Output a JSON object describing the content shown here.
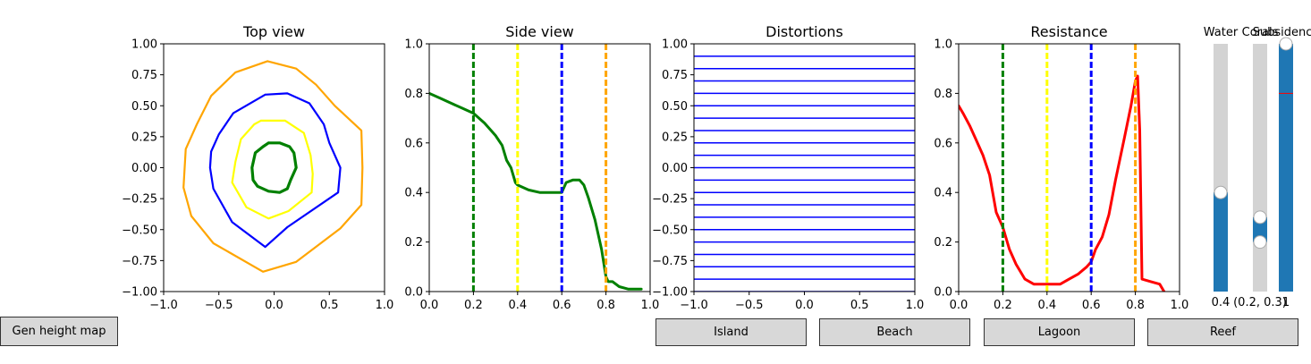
{
  "chart_data": [
    {
      "type": "line",
      "title": "Top view",
      "xlim": [
        -1,
        1
      ],
      "ylim": [
        -1,
        1
      ],
      "xticks": [
        "−1.0",
        "−0.5",
        "0.0",
        "0.5",
        "1.0"
      ],
      "yticks": [
        "−1.00",
        "−0.75",
        "−0.50",
        "−0.25",
        "0.00",
        "0.25",
        "0.50",
        "0.75",
        "1.00"
      ],
      "series": [
        {
          "color": "#ffa500",
          "width": 2.2,
          "x": [
            -0.06,
            0.2,
            0.38,
            0.55,
            0.79,
            0.8,
            0.79,
            0.6,
            0.2,
            -0.1,
            -0.55,
            -0.75,
            -0.82,
            -0.8,
            -0.7,
            -0.57,
            -0.35,
            -0.06
          ],
          "y": [
            0.86,
            0.8,
            0.67,
            0.5,
            0.3,
            0.0,
            -0.3,
            -0.49,
            -0.76,
            -0.84,
            -0.61,
            -0.39,
            -0.16,
            0.15,
            0.35,
            0.58,
            0.77,
            0.86
          ]
        },
        {
          "color": "#0000ff",
          "width": 2.2,
          "x": [
            -0.08,
            0.12,
            0.32,
            0.45,
            0.5,
            0.6,
            0.58,
            0.12,
            -0.08,
            -0.38,
            -0.55,
            -0.58,
            -0.57,
            -0.5,
            -0.37,
            -0.08
          ],
          "y": [
            0.59,
            0.6,
            0.52,
            0.35,
            0.2,
            0.0,
            -0.2,
            -0.48,
            -0.64,
            -0.44,
            -0.17,
            0.0,
            0.13,
            0.27,
            0.44,
            0.59
          ]
        },
        {
          "color": "#ffff00",
          "width": 2.2,
          "x": [
            -0.12,
            0.1,
            0.27,
            0.33,
            0.35,
            0.34,
            0.13,
            -0.05,
            -0.25,
            -0.38,
            -0.35,
            -0.3,
            -0.18,
            -0.12
          ],
          "y": [
            0.38,
            0.38,
            0.28,
            0.1,
            -0.05,
            -0.2,
            -0.35,
            -0.41,
            -0.32,
            -0.12,
            0.05,
            0.23,
            0.35,
            0.38
          ]
        },
        {
          "color": "#008000",
          "width": 3.2,
          "x": [
            -0.05,
            0.05,
            0.14,
            0.18,
            0.2,
            0.15,
            0.12,
            0.05,
            -0.05,
            -0.15,
            -0.19,
            -0.2,
            -0.17,
            -0.1,
            -0.05
          ],
          "y": [
            0.2,
            0.2,
            0.17,
            0.12,
            0.0,
            -0.1,
            -0.17,
            -0.2,
            -0.19,
            -0.15,
            -0.1,
            0.0,
            0.12,
            0.17,
            0.2
          ]
        }
      ]
    },
    {
      "type": "line",
      "title": "Side view",
      "xlim": [
        0,
        1
      ],
      "ylim": [
        0,
        1
      ],
      "xticks": [
        "0.0",
        "0.2",
        "0.4",
        "0.6",
        "0.8",
        "1.0"
      ],
      "yticks": [
        "0.0",
        "0.2",
        "0.4",
        "0.6",
        "0.8",
        "1.0"
      ],
      "series": [
        {
          "color": "#008000",
          "width": 3,
          "x": [
            0,
            0.05,
            0.1,
            0.15,
            0.2,
            0.25,
            0.3,
            0.33,
            0.35,
            0.37,
            0.39,
            0.4,
            0.45,
            0.5,
            0.55,
            0.58,
            0.6,
            0.62,
            0.65,
            0.68,
            0.7,
            0.72,
            0.75,
            0.78,
            0.8,
            0.81,
            0.83,
            0.86,
            0.9,
            0.96
          ],
          "y": [
            0.8,
            0.78,
            0.76,
            0.74,
            0.72,
            0.68,
            0.63,
            0.59,
            0.53,
            0.5,
            0.44,
            0.43,
            0.41,
            0.4,
            0.4,
            0.4,
            0.4,
            0.44,
            0.45,
            0.45,
            0.43,
            0.38,
            0.29,
            0.17,
            0.06,
            0.04,
            0.04,
            0.02,
            0.01,
            0.01
          ]
        }
      ],
      "vlines": [
        {
          "x": 0.2,
          "color": "#008000"
        },
        {
          "x": 0.4,
          "color": "#ffff00"
        },
        {
          "x": 0.6,
          "color": "#0000ff"
        },
        {
          "x": 0.8,
          "color": "#ffa500"
        }
      ]
    },
    {
      "type": "line",
      "title": "Distortions",
      "xlim": [
        -1,
        1
      ],
      "ylim": [
        -1,
        1
      ],
      "xticks": [
        "−1.0",
        "−0.5",
        "0.0",
        "0.5",
        "1.0"
      ],
      "yticks": [
        "−1.00",
        "−0.75",
        "−0.50",
        "−0.25",
        "0.00",
        "0.25",
        "0.50",
        "0.75",
        "1.00"
      ],
      "hlines_color": "#0000ff",
      "hlines": [
        -1.0,
        -0.9,
        -0.8,
        -0.7,
        -0.6,
        -0.5,
        -0.4,
        -0.3,
        -0.2,
        -0.1,
        0.0,
        0.1,
        0.2,
        0.3,
        0.4,
        0.5,
        0.6,
        0.7,
        0.8,
        0.9
      ]
    },
    {
      "type": "line",
      "title": "Resistance",
      "xlim": [
        0,
        1
      ],
      "ylim": [
        0,
        1
      ],
      "xticks": [
        "0.0",
        "0.2",
        "0.4",
        "0.6",
        "0.8",
        "1.0"
      ],
      "yticks": [
        "0.0",
        "0.2",
        "0.4",
        "0.6",
        "0.8",
        "1.0"
      ],
      "series": [
        {
          "color": "#ff0000",
          "width": 3,
          "x": [
            0,
            0.02,
            0.05,
            0.08,
            0.11,
            0.14,
            0.17,
            0.2,
            0.23,
            0.26,
            0.3,
            0.34,
            0.38,
            0.42,
            0.46,
            0.5,
            0.54,
            0.58,
            0.6,
            0.62,
            0.65,
            0.68,
            0.71,
            0.75,
            0.78,
            0.8,
            0.81,
            0.82,
            0.83,
            0.87,
            0.91,
            0.93
          ],
          "y": [
            0.75,
            0.72,
            0.67,
            0.61,
            0.55,
            0.47,
            0.32,
            0.26,
            0.17,
            0.11,
            0.05,
            0.03,
            0.03,
            0.03,
            0.03,
            0.05,
            0.07,
            0.1,
            0.12,
            0.17,
            0.22,
            0.31,
            0.45,
            0.62,
            0.75,
            0.85,
            0.87,
            0.65,
            0.05,
            0.04,
            0.03,
            0.0
          ]
        }
      ],
      "vlines": [
        {
          "x": 0.2,
          "color": "#008000"
        },
        {
          "x": 0.4,
          "color": "#ffff00"
        },
        {
          "x": 0.6,
          "color": "#0000ff"
        },
        {
          "x": 0.8,
          "color": "#ffa500"
        }
      ]
    }
  ],
  "sliders": [
    {
      "id": "water",
      "label": "Water",
      "value_text": "0.4",
      "range": [
        0,
        1
      ],
      "fill_low": 0,
      "fill_high": 0.4,
      "handles": [
        0.4
      ]
    },
    {
      "id": "corals",
      "label": "Corals",
      "value_text": "(0.2, 0.3)",
      "range": [
        0,
        1
      ],
      "fill_low": 0.2,
      "fill_high": 0.3,
      "handles": [
        0.2,
        0.3
      ]
    },
    {
      "id": "subsidence",
      "label": "Subsidence",
      "value_text": "1",
      "range": [
        0,
        1
      ],
      "fill_low": 0,
      "fill_high": 1,
      "handles": [
        1
      ],
      "marker": 0.8,
      "marker_color": "#ff0000"
    }
  ],
  "buttons": [
    {
      "id": "gen-height-map",
      "label": "Gen height map"
    },
    {
      "id": "island",
      "label": "Island"
    },
    {
      "id": "beach",
      "label": "Beach"
    },
    {
      "id": "lagoon",
      "label": "Lagoon"
    },
    {
      "id": "reef",
      "label": "Reef"
    }
  ]
}
